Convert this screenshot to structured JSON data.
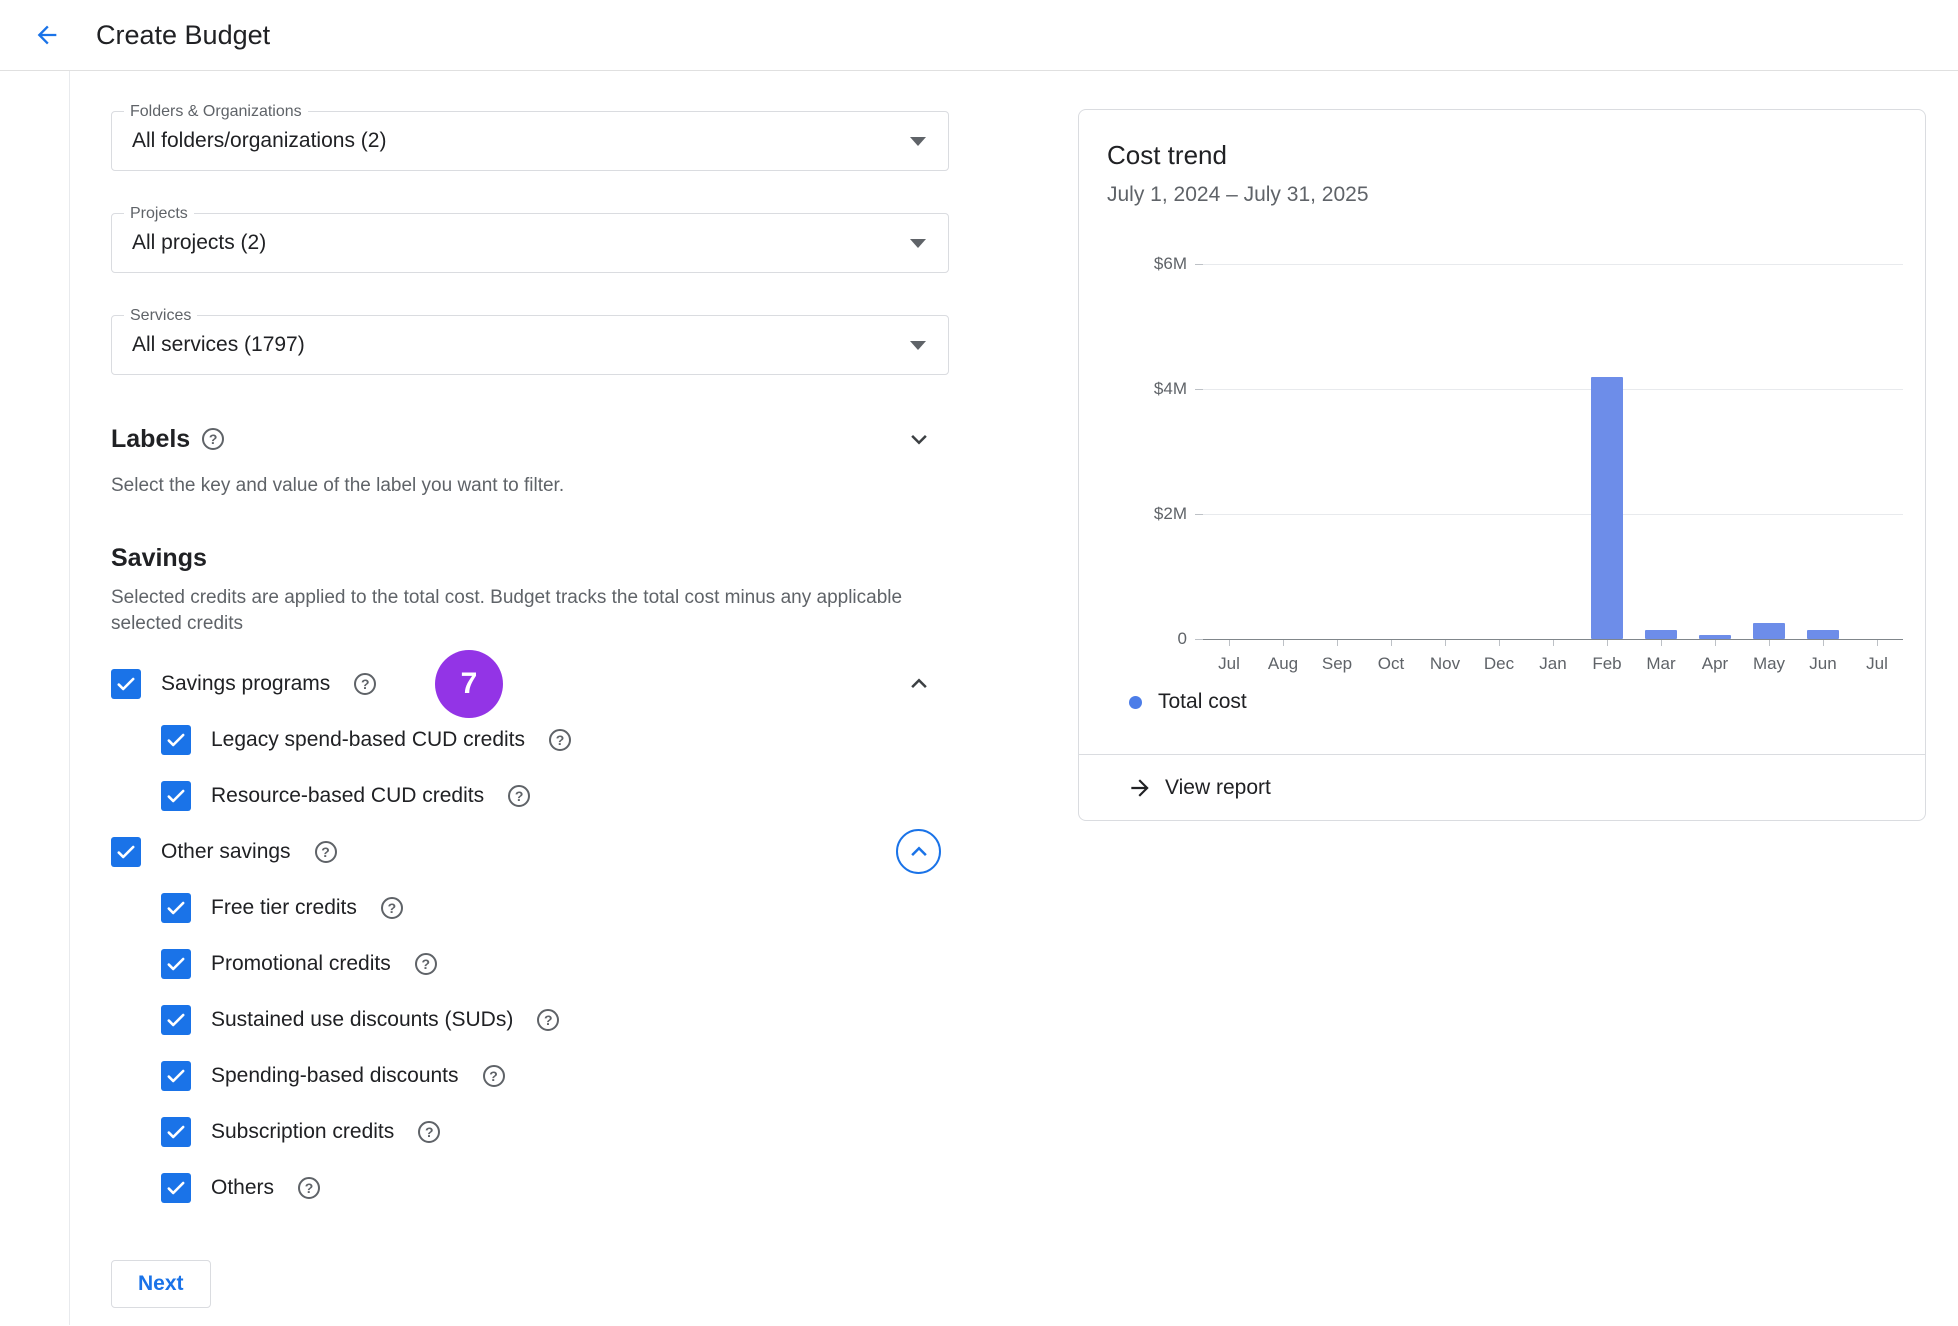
{
  "header": {
    "title": "Create Budget"
  },
  "colors": {
    "accent": "#1a73e8",
    "badge": "#9334e6"
  },
  "form": {
    "fields": [
      {
        "label": "Folders & Organizations",
        "value": "All folders/organizations (2)"
      },
      {
        "label": "Projects",
        "value": "All projects (2)"
      },
      {
        "label": "Services",
        "value": "All services (1797)"
      }
    ],
    "labels_section": {
      "title": "Labels",
      "description": "Select the key and value of the label you want to filter."
    },
    "savings": {
      "title": "Savings",
      "description": "Selected credits are applied to the total cost. Budget tracks the total cost minus any applicable selected credits",
      "badge": "7",
      "groups": [
        {
          "label": "Savings programs",
          "checked": true,
          "chevron": "up",
          "children": [
            "Legacy spend-based CUD credits",
            "Resource-based CUD credits"
          ]
        },
        {
          "label": "Other savings",
          "checked": true,
          "chevron": "up-circled",
          "children": [
            "Free tier credits",
            "Promotional credits",
            "Sustained use discounts (SUDs)",
            "Spending-based discounts",
            "Subscription credits",
            "Others"
          ]
        }
      ]
    },
    "next_label": "Next"
  },
  "card": {
    "view_report_label": "View report"
  },
  "chart_data": {
    "type": "bar",
    "title": "Cost trend",
    "subtitle": "July 1, 2024 – July 31, 2025",
    "categories": [
      "Jul",
      "Aug",
      "Sep",
      "Oct",
      "Nov",
      "Dec",
      "Jan",
      "Feb",
      "Mar",
      "Apr",
      "May",
      "Jun",
      "Jul"
    ],
    "values": [
      0,
      0,
      0,
      0,
      0,
      0,
      0,
      4.2,
      0.15,
      0.07,
      0.25,
      0.15,
      0
    ],
    "unit": "USD millions",
    "ylim": [
      0,
      6
    ],
    "ytick_values": [
      6,
      4,
      2,
      0
    ],
    "ytick_labels": [
      "$6M",
      "$4M",
      "$2M",
      "0"
    ],
    "bar_color": "#6d8de9",
    "grid": true,
    "legend": [
      {
        "label": "Total cost",
        "color": "#4c7de8"
      }
    ],
    "legend_position": "bottom"
  }
}
